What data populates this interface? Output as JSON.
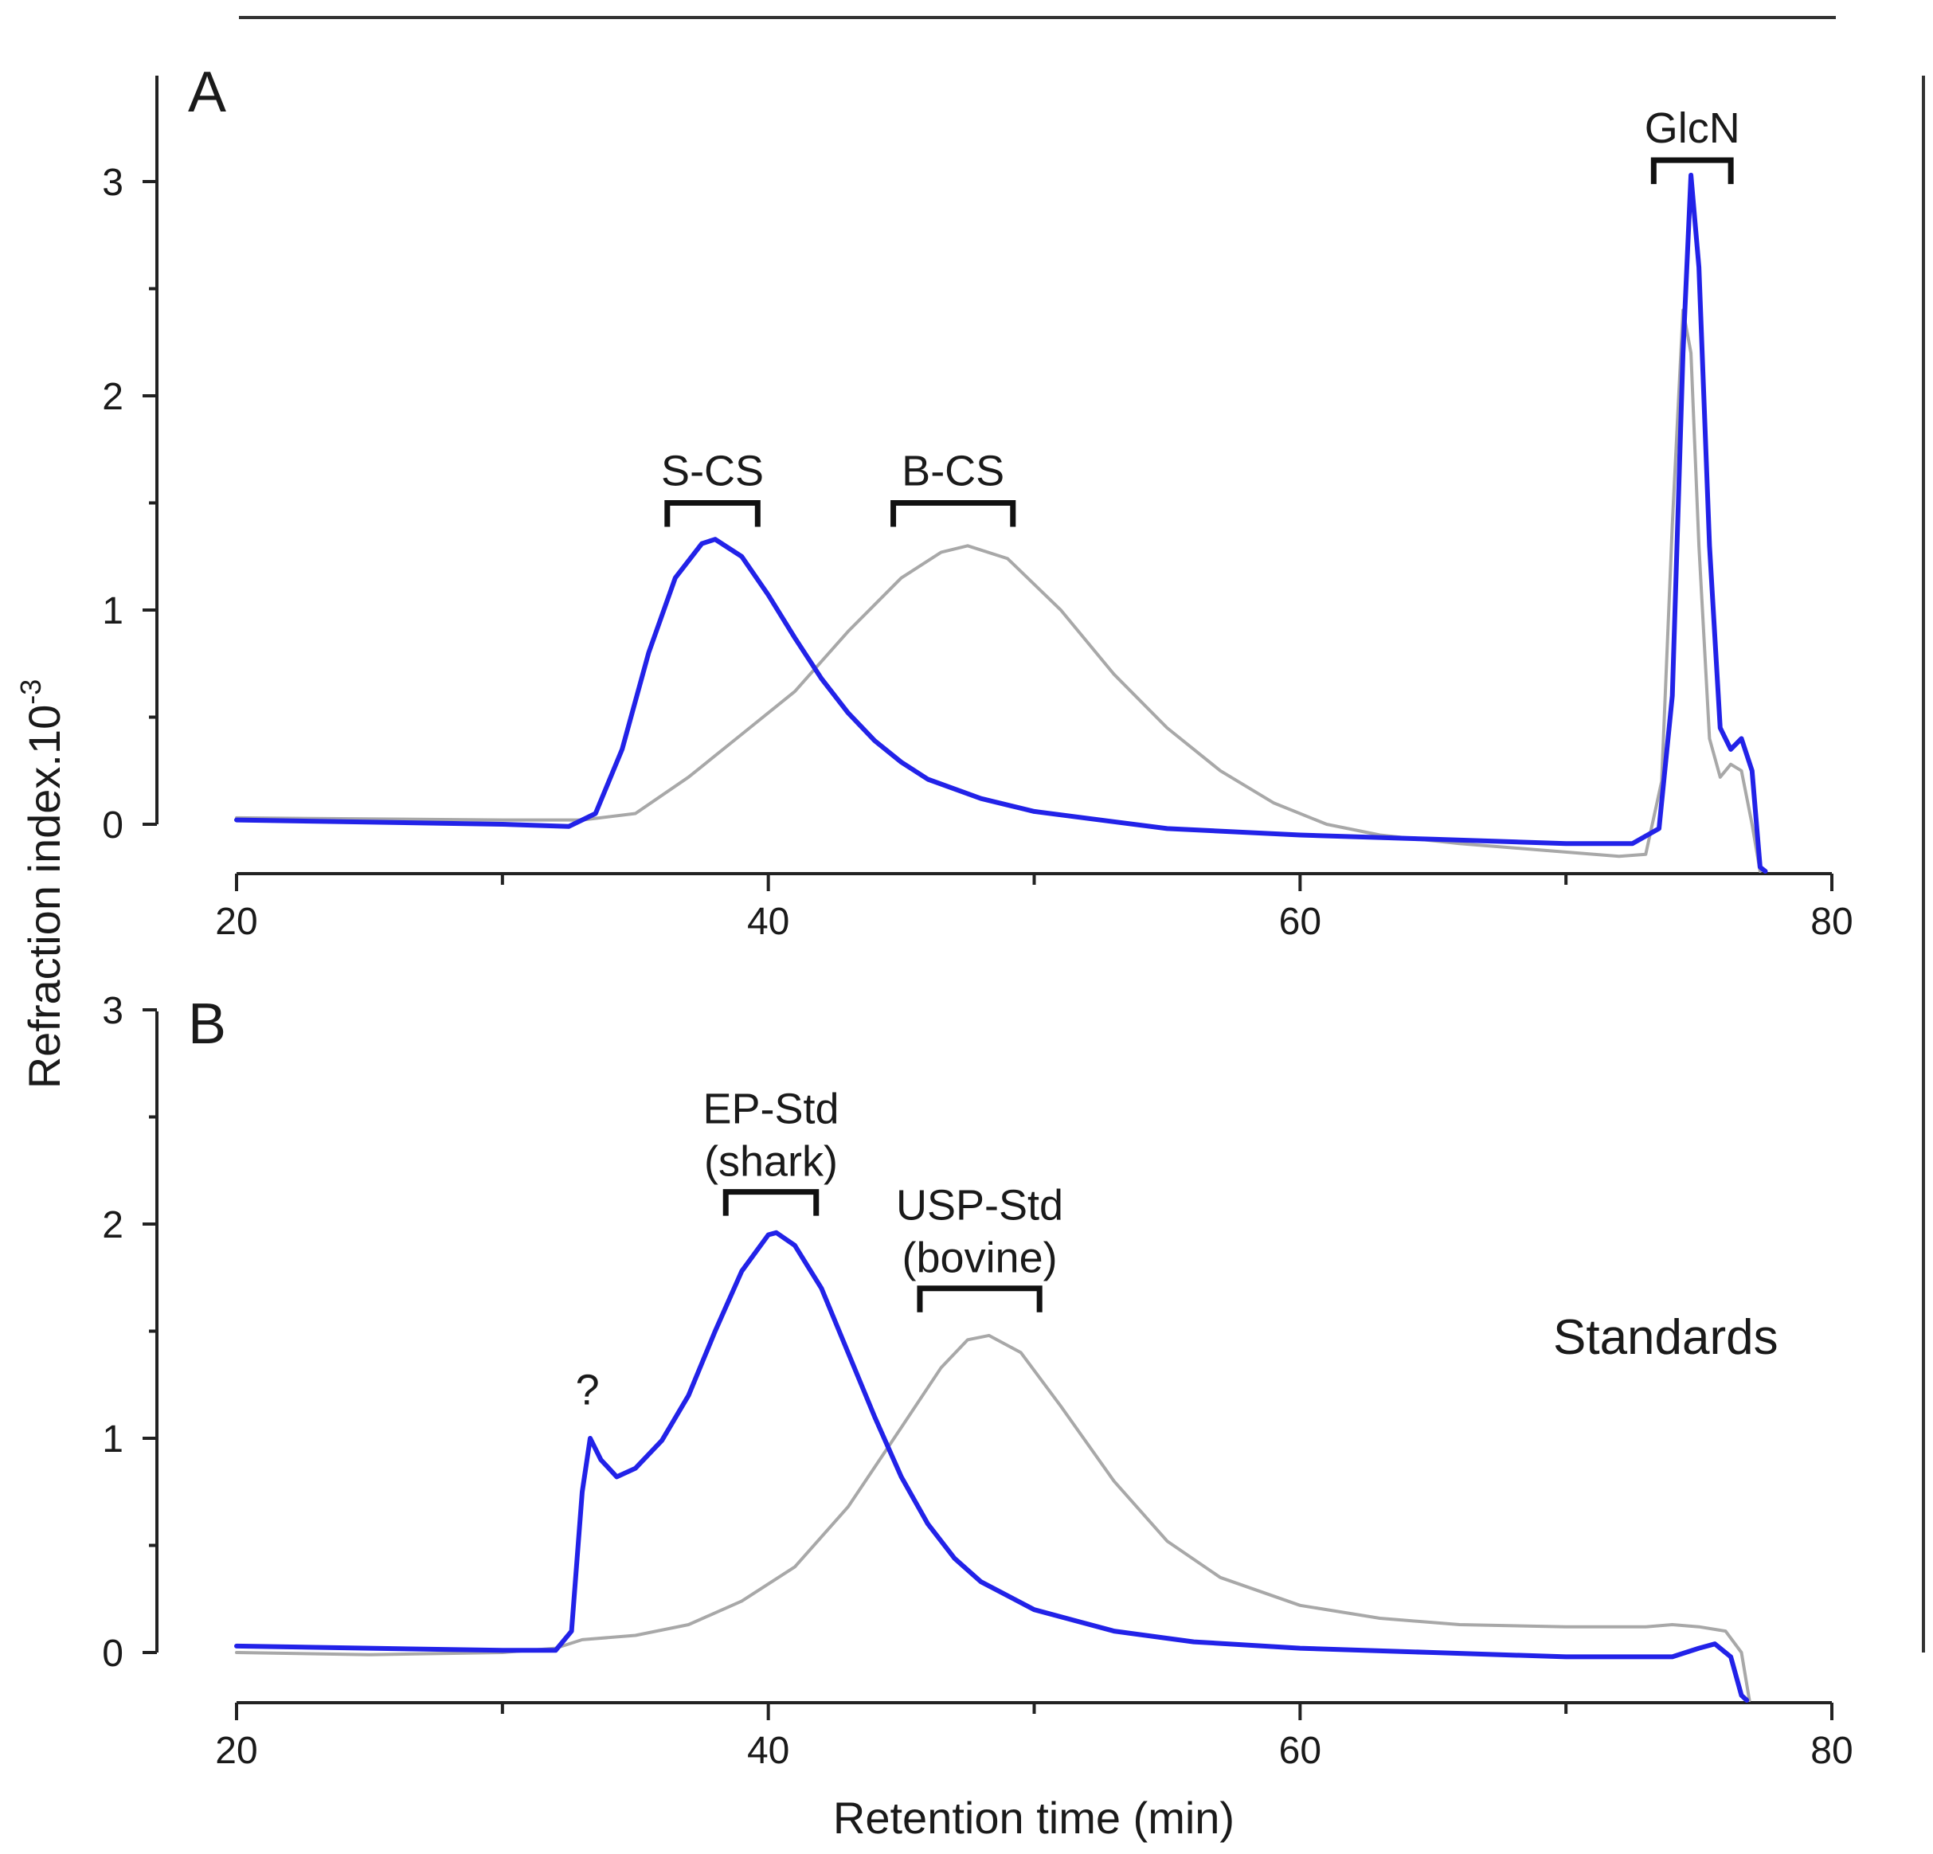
{
  "chart_data": [
    {
      "panel": "A",
      "type": "line",
      "xlabel": "",
      "ylabel": "Refraction index.10",
      "ylabel_superscript": "-3",
      "xlim": [
        20,
        80
      ],
      "ylim": [
        -0.25,
        3.5
      ],
      "xticks": [
        20,
        40,
        60,
        80
      ],
      "yticks": [
        0,
        1,
        2,
        3
      ],
      "xtick_labels": [
        "20",
        "40",
        "60",
        "80"
      ],
      "ytick_labels": [
        "0",
        "1",
        "2",
        "3"
      ],
      "legend": "none",
      "annotations": [
        {
          "label": "S-CS",
          "x_start": 36.2,
          "x_end": 39.6,
          "y": 1.5
        },
        {
          "label": "B-CS",
          "x_start": 44.7,
          "x_end": 49.2,
          "y": 1.5
        },
        {
          "label": "GlcN",
          "x_start": 73.3,
          "x_end": 76.2,
          "y": 3.1
        }
      ],
      "series": [
        {
          "name": "S-CS",
          "color": "#2222e8",
          "points": [
            [
              20,
              0.02
            ],
            [
              30,
              0.0
            ],
            [
              32.5,
              -0.01
            ],
            [
              33.5,
              0.05
            ],
            [
              34.5,
              0.35
            ],
            [
              35.5,
              0.8
            ],
            [
              36.5,
              1.15
            ],
            [
              37.5,
              1.31
            ],
            [
              38,
              1.33
            ],
            [
              39,
              1.25
            ],
            [
              40,
              1.07
            ],
            [
              41,
              0.87
            ],
            [
              42,
              0.68
            ],
            [
              43,
              0.52
            ],
            [
              44,
              0.39
            ],
            [
              45,
              0.29
            ],
            [
              46,
              0.21
            ],
            [
              48,
              0.12
            ],
            [
              50,
              0.06
            ],
            [
              55,
              -0.02
            ],
            [
              60,
              -0.05
            ],
            [
              65,
              -0.07
            ],
            [
              70,
              -0.09
            ],
            [
              72.5,
              -0.09
            ],
            [
              73.5,
              -0.02
            ],
            [
              74.0,
              0.6
            ],
            [
              74.4,
              2.2
            ],
            [
              74.7,
              3.03
            ],
            [
              75.0,
              2.6
            ],
            [
              75.4,
              1.3
            ],
            [
              75.8,
              0.45
            ],
            [
              76.2,
              0.35
            ],
            [
              76.6,
              0.4
            ],
            [
              77.0,
              0.25
            ],
            [
              77.3,
              -0.2
            ],
            [
              77.5,
              -0.3
            ]
          ]
        },
        {
          "name": "B-CS",
          "color": "#a8a8a8",
          "points": [
            [
              20,
              0.03
            ],
            [
              30,
              0.02
            ],
            [
              33,
              0.02
            ],
            [
              35,
              0.05
            ],
            [
              37,
              0.22
            ],
            [
              39,
              0.42
            ],
            [
              41,
              0.62
            ],
            [
              43,
              0.9
            ],
            [
              45,
              1.15
            ],
            [
              46.5,
              1.27
            ],
            [
              47.5,
              1.3
            ],
            [
              49,
              1.24
            ],
            [
              51,
              1.0
            ],
            [
              53,
              0.7
            ],
            [
              55,
              0.45
            ],
            [
              57,
              0.25
            ],
            [
              59,
              0.1
            ],
            [
              61,
              0.0
            ],
            [
              63,
              -0.05
            ],
            [
              66,
              -0.09
            ],
            [
              69,
              -0.12
            ],
            [
              72,
              -0.15
            ],
            [
              73,
              -0.14
            ],
            [
              73.6,
              0.2
            ],
            [
              74.0,
              1.4
            ],
            [
              74.4,
              2.4
            ],
            [
              74.7,
              2.2
            ],
            [
              75.0,
              1.3
            ],
            [
              75.4,
              0.4
            ],
            [
              75.8,
              0.22
            ],
            [
              76.2,
              0.28
            ],
            [
              76.6,
              0.25
            ],
            [
              77.0,
              0.0
            ],
            [
              77.3,
              -0.3
            ]
          ]
        }
      ]
    },
    {
      "panel": "B",
      "type": "line",
      "xlabel": "Retention time (min)",
      "ylabel": "",
      "xlim": [
        20,
        80
      ],
      "ylim": [
        -0.25,
        3.0
      ],
      "xticks": [
        20,
        40,
        60,
        80
      ],
      "yticks": [
        0,
        1,
        2,
        3
      ],
      "xtick_labels": [
        "20",
        "40",
        "60",
        "80"
      ],
      "ytick_labels": [
        "0",
        "1",
        "2",
        "3"
      ],
      "legend": "none",
      "note": "Standards",
      "annotations": [
        {
          "label": "EP-Std",
          "label2": "(shark)",
          "x_start": 38.4,
          "x_end": 41.8,
          "y": 2.15
        },
        {
          "label": "USP-Std",
          "label2": "(bovine)",
          "x_start": 45.7,
          "x_end": 50.2,
          "y": 1.7
        },
        {
          "label": "?",
          "x": 33.2,
          "y": 1.12
        }
      ],
      "series": [
        {
          "name": "EP-Std (shark)",
          "color": "#2222e8",
          "points": [
            [
              20,
              0.03
            ],
            [
              30,
              0.01
            ],
            [
              32,
              0.01
            ],
            [
              32.6,
              0.1
            ],
            [
              33.0,
              0.75
            ],
            [
              33.3,
              1.0
            ],
            [
              33.7,
              0.9
            ],
            [
              34.3,
              0.82
            ],
            [
              35,
              0.86
            ],
            [
              36,
              0.99
            ],
            [
              37,
              1.2
            ],
            [
              38,
              1.5
            ],
            [
              39,
              1.78
            ],
            [
              40,
              1.95
            ],
            [
              40.3,
              1.96
            ],
            [
              41,
              1.9
            ],
            [
              42,
              1.7
            ],
            [
              43,
              1.4
            ],
            [
              44,
              1.1
            ],
            [
              45,
              0.82
            ],
            [
              46,
              0.6
            ],
            [
              47,
              0.44
            ],
            [
              48,
              0.33
            ],
            [
              50,
              0.2
            ],
            [
              53,
              0.1
            ],
            [
              56,
              0.05
            ],
            [
              60,
              0.02
            ],
            [
              65,
              0.0
            ],
            [
              70,
              -0.02
            ],
            [
              74,
              -0.02
            ],
            [
              75,
              0.02
            ],
            [
              75.6,
              0.04
            ],
            [
              76.2,
              -0.02
            ],
            [
              76.6,
              -0.2
            ],
            [
              76.8,
              -0.3
            ]
          ]
        },
        {
          "name": "USP-Std (bovine)",
          "color": "#a8a8a8",
          "points": [
            [
              20,
              0.0
            ],
            [
              25,
              -0.01
            ],
            [
              30,
              0.0
            ],
            [
              32,
              0.02
            ],
            [
              33,
              0.06
            ],
            [
              35,
              0.08
            ],
            [
              37,
              0.13
            ],
            [
              39,
              0.24
            ],
            [
              41,
              0.4
            ],
            [
              43,
              0.68
            ],
            [
              45,
              1.05
            ],
            [
              46.5,
              1.33
            ],
            [
              47.5,
              1.46
            ],
            [
              48.3,
              1.48
            ],
            [
              49.5,
              1.4
            ],
            [
              51,
              1.15
            ],
            [
              53,
              0.8
            ],
            [
              55,
              0.52
            ],
            [
              57,
              0.35
            ],
            [
              60,
              0.22
            ],
            [
              63,
              0.16
            ],
            [
              66,
              0.13
            ],
            [
              70,
              0.12
            ],
            [
              73,
              0.12
            ],
            [
              74,
              0.13
            ],
            [
              75,
              0.12
            ],
            [
              76,
              0.1
            ],
            [
              76.6,
              0.0
            ],
            [
              76.9,
              -0.3
            ]
          ]
        }
      ]
    }
  ]
}
